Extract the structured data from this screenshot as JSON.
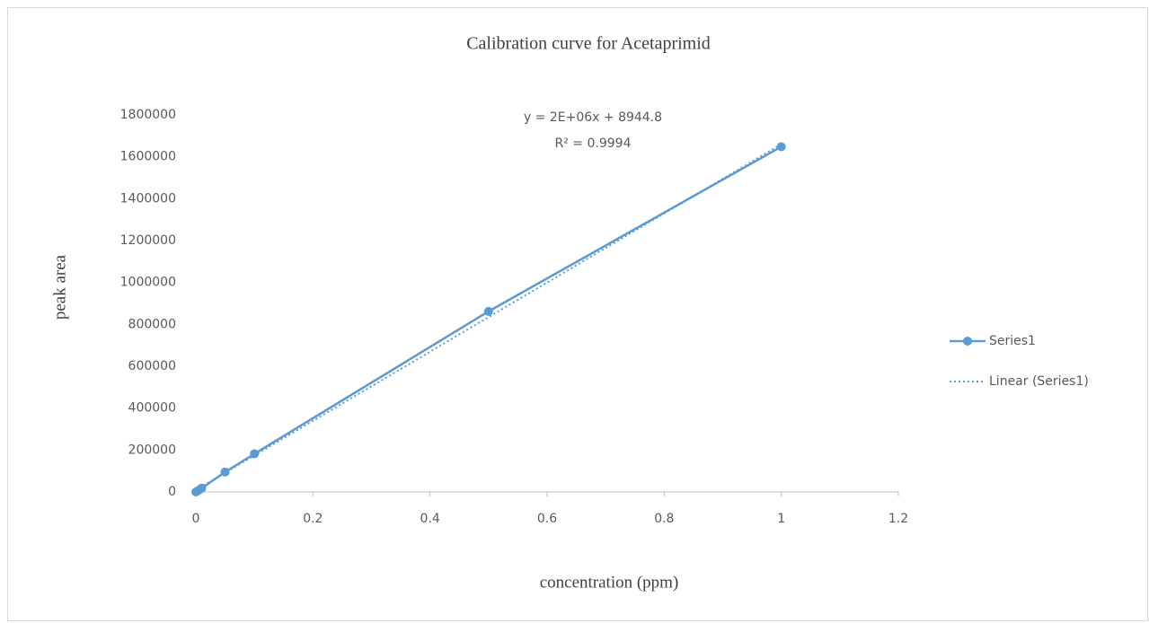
{
  "chart_data": {
    "type": "scatter-line",
    "title": "Calibration  curve  for Acetaprimid",
    "x_label": "concentration  (ppm)",
    "y_label": "peak  area",
    "annotations": [
      "y = 2E+06x + 8944.8",
      "R² = 0.9994"
    ],
    "xlim": [
      0,
      1.2
    ],
    "xticks": [
      0,
      0.2,
      0.4,
      0.6,
      0.8,
      1,
      1.2
    ],
    "ylim": [
      0,
      1800000
    ],
    "yticks": [
      0,
      200000,
      400000,
      600000,
      800000,
      1000000,
      1200000,
      1400000,
      1600000,
      1800000
    ],
    "grid": false,
    "legend": "right",
    "series": [
      {
        "name": "Series1",
        "color": "#5b9bd5",
        "style": "solid-markers",
        "x": [
          0,
          0.005,
          0.01,
          0.05,
          0.1,
          0.5,
          1
        ],
        "values": [
          0,
          8000,
          18000,
          95000,
          182000,
          862000,
          1648000
        ]
      },
      {
        "name": "Linear (Series1)",
        "color": "#5b9bd5",
        "style": "dotted",
        "x": [
          0,
          1
        ],
        "values": [
          8944.8,
          1660000
        ]
      }
    ]
  }
}
